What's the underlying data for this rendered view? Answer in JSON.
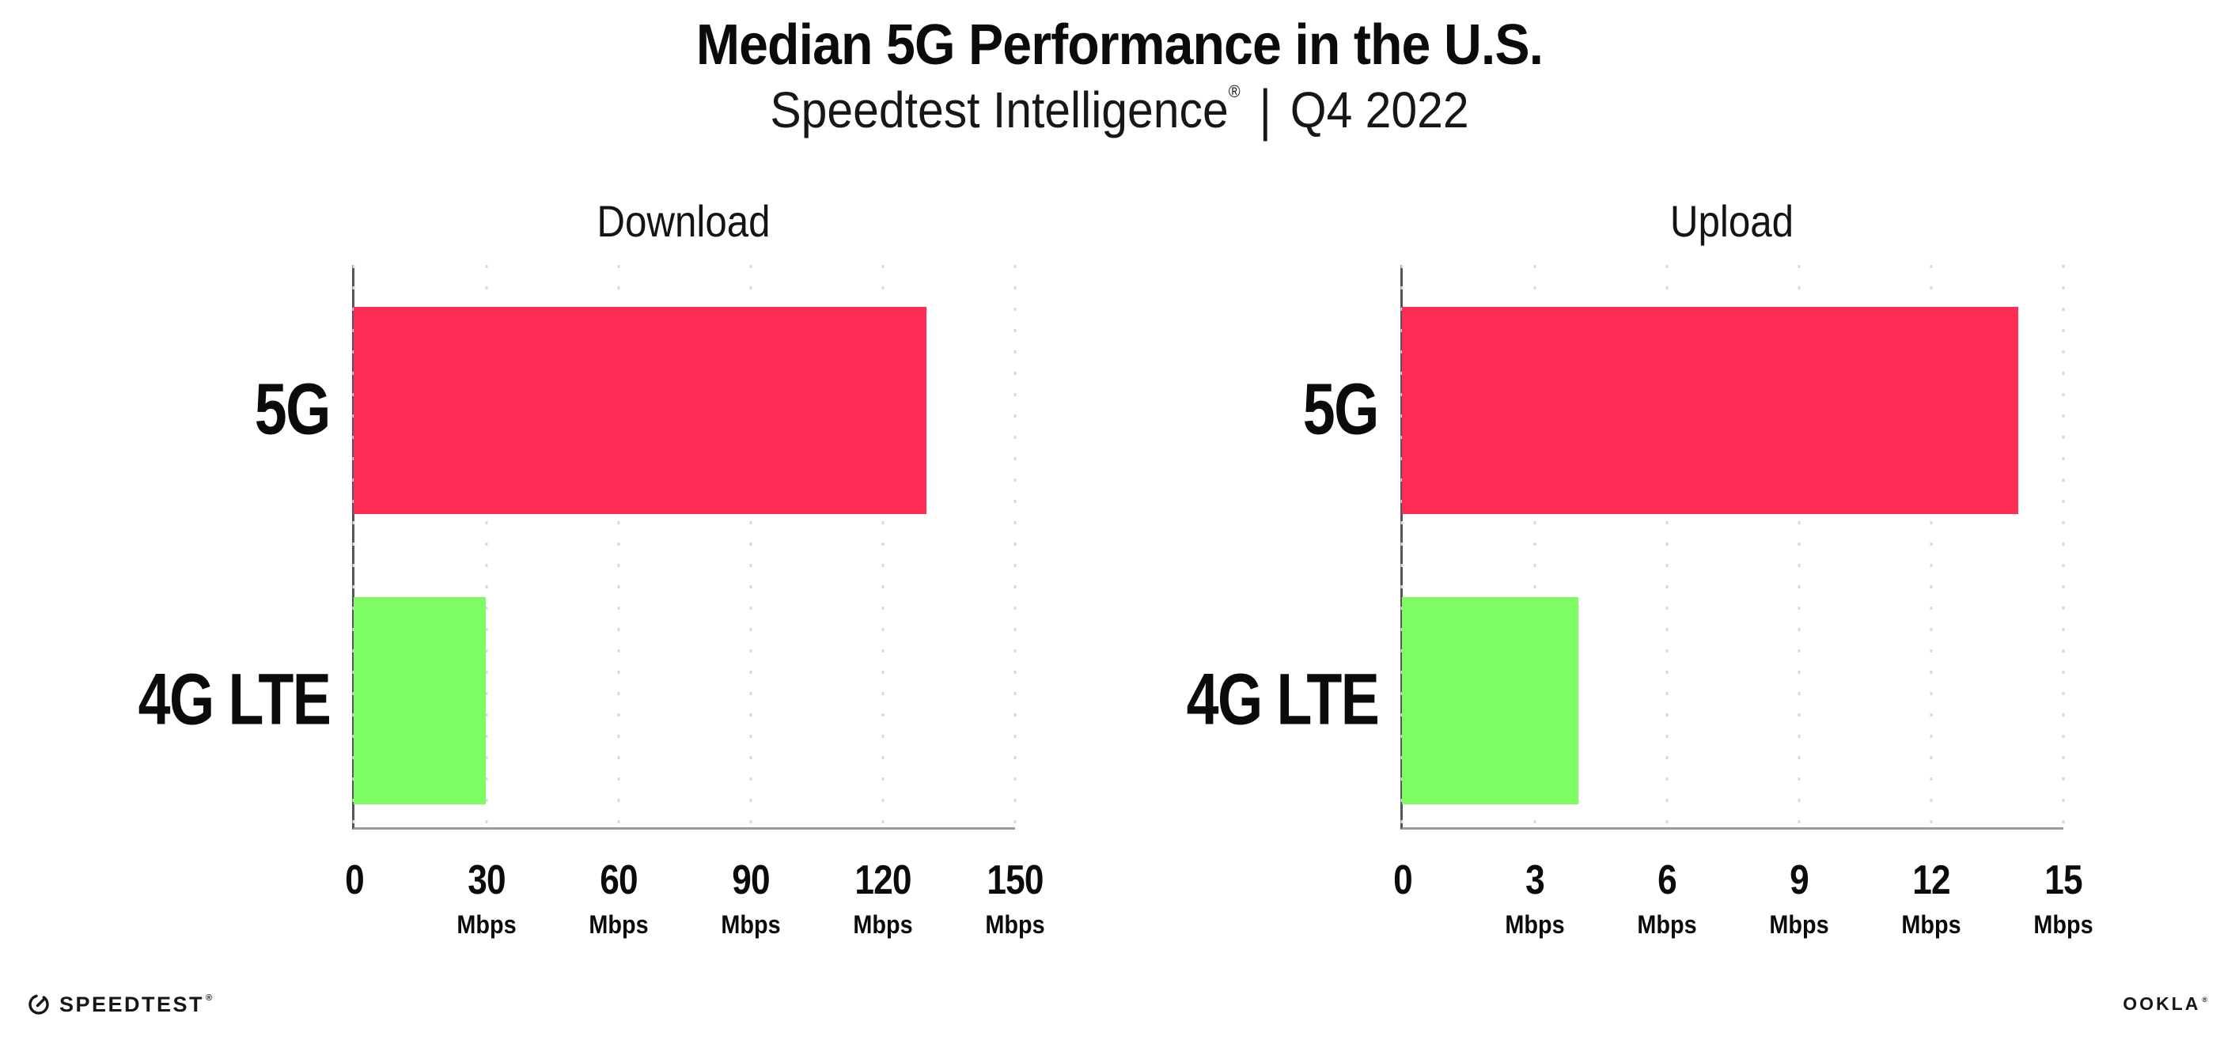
{
  "header": {
    "title": "Median 5G Performance in the U.S.",
    "subtitle_brand": "Speedtest Intelligence",
    "subtitle_mark": "®",
    "subtitle_separator": "|",
    "subtitle_period": "Q4 2022"
  },
  "chart_data": [
    {
      "type": "bar",
      "orientation": "horizontal",
      "title": "Download",
      "categories": [
        "5G",
        "4G LTE"
      ],
      "values": [
        130,
        30
      ],
      "unit": "Mbps",
      "xlabel": "",
      "ylabel": "",
      "xlim": [
        0,
        150
      ],
      "xticks": [
        0,
        30,
        60,
        90,
        120,
        150
      ],
      "bar_colors": [
        "#FF2D55",
        "#7DFC64"
      ],
      "grid": "vertical-dotted",
      "legend": "none"
    },
    {
      "type": "bar",
      "orientation": "horizontal",
      "title": "Upload",
      "categories": [
        "5G",
        "4G LTE"
      ],
      "values": [
        14,
        4
      ],
      "unit": "Mbps",
      "xlabel": "",
      "ylabel": "",
      "xlim": [
        0,
        15
      ],
      "xticks": [
        0,
        3,
        6,
        9,
        12,
        15
      ],
      "bar_colors": [
        "#FF2D55",
        "#7DFC64"
      ],
      "grid": "vertical-dotted",
      "legend": "none"
    }
  ],
  "footer": {
    "speedtest_logo_text": "SPEEDTEST",
    "speedtest_logo_mark": "®",
    "ookla_logo_text": "OOKLA",
    "ookla_logo_mark": "®"
  },
  "colors": {
    "bar_5g": "#FF2D55",
    "bar_4g_lte": "#7DFC64",
    "background": "#FFFFFF",
    "grid": "#D9D9E0",
    "axis_spine": "#54545A",
    "axis_baseline": "#9A9AA0"
  }
}
